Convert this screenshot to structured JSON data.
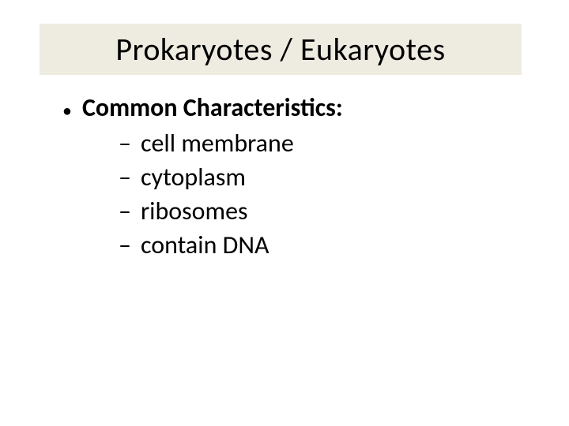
{
  "slide": {
    "title": "Prokaryotes  /  Eukaryotes",
    "title_bg_color": "#eeece1",
    "title_fontsize": 40,
    "title_color": "#000000",
    "heading_bullet": "•",
    "heading_text": "Common Characteristics:",
    "heading_fontsize": 32,
    "sub_bullet": "–",
    "sub_items": [
      "cell membrane",
      "cytoplasm",
      "ribosomes",
      "contain DNA"
    ],
    "sub_fontsize": 32,
    "background_color": "#ffffff",
    "text_color": "#000000"
  }
}
